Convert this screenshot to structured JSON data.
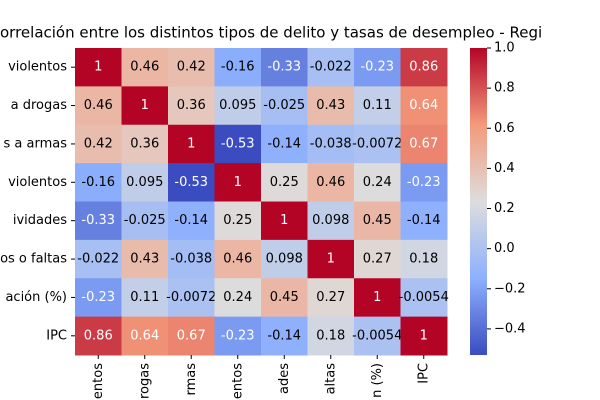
{
  "chart_data": {
    "type": "heatmap",
    "title": "orrelación entre los distintos tipos de delito y tasas de desempleo - Regi",
    "row_labels": [
      "violentos",
      "a drogas",
      "s a armas",
      "violentos",
      "ividades",
      "os o faltas",
      "ación (%)",
      "IPC"
    ],
    "column_labels": [
      "entos",
      "rogas",
      "rmas",
      "entos",
      "ades",
      "altas",
      "n (%)",
      "IPC"
    ],
    "values": [
      [
        1,
        0.46,
        0.42,
        -0.16,
        -0.33,
        -0.022,
        -0.23,
        0.86
      ],
      [
        0.46,
        1,
        0.36,
        0.095,
        -0.025,
        0.43,
        0.11,
        0.64
      ],
      [
        0.42,
        0.36,
        1,
        -0.53,
        -0.14,
        -0.038,
        -0.0072,
        0.67
      ],
      [
        -0.16,
        0.095,
        -0.53,
        1,
        0.25,
        0.46,
        0.24,
        -0.23
      ],
      [
        -0.33,
        -0.025,
        -0.14,
        0.25,
        1,
        0.098,
        0.45,
        -0.14
      ],
      [
        -0.022,
        0.43,
        -0.038,
        0.46,
        0.098,
        1,
        0.27,
        0.18
      ],
      [
        -0.23,
        0.11,
        -0.0072,
        0.24,
        0.45,
        0.27,
        1,
        -0.0054
      ],
      [
        0.86,
        0.64,
        0.67,
        -0.23,
        -0.14,
        0.18,
        -0.0054,
        1
      ]
    ],
    "colormap": "coolwarm",
    "colorbar_lim": [
      -0.53,
      1
    ],
    "colorbar_ticks": [
      {
        "value": -0.4,
        "label": "−0.4"
      },
      {
        "value": -0.2,
        "label": "−0.2"
      },
      {
        "value": 0,
        "label": "0.0"
      },
      {
        "value": 0.2,
        "label": "0.2"
      },
      {
        "value": 0.4,
        "label": "0.4"
      },
      {
        "value": 0.6,
        "label": "0.6"
      },
      {
        "value": 0.8,
        "label": "0.8"
      },
      {
        "value": 1,
        "label": "1.0"
      }
    ]
  }
}
